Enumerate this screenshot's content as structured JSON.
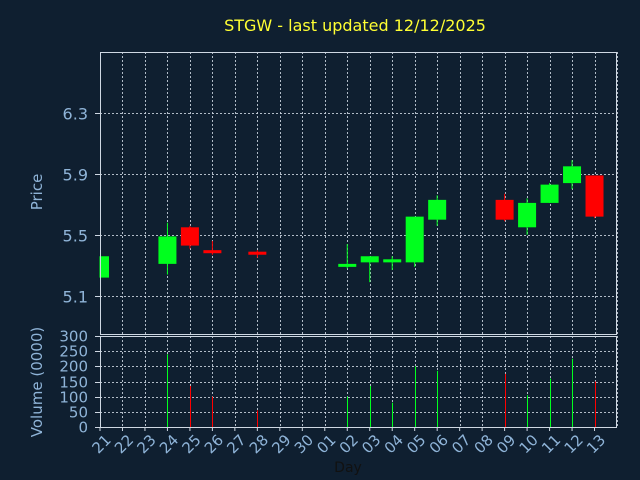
{
  "colors": {
    "background": "#0f1f30",
    "up": "#00ff1e",
    "down": "#ff0000",
    "grid": "#cfd8e3",
    "frame": "#cfd8e3",
    "text": "#8fb4d8",
    "title": "#ffff33"
  },
  "chart_data": [
    {
      "type": "candlestick",
      "title": "STGW - last updated 12/12/2025",
      "ylabel": "Price",
      "ylim": [
        4.85,
        6.7
      ],
      "yticks": [
        "5.1",
        "5.5",
        "5.9",
        "6.3"
      ],
      "grid": true,
      "x_range": [
        21,
        44
      ],
      "candles": [
        {
          "x": 21,
          "open": 5.22,
          "high": 5.36,
          "low": 5.22,
          "close": 5.36
        },
        {
          "x": 24,
          "open": 5.31,
          "high": 5.58,
          "low": 5.24,
          "close": 5.49
        },
        {
          "x": 25,
          "open": 5.55,
          "high": 5.56,
          "low": 5.41,
          "close": 5.43
        },
        {
          "x": 26,
          "open": 5.4,
          "high": 5.46,
          "low": 5.37,
          "close": 5.38
        },
        {
          "x": 28,
          "open": 5.39,
          "high": 5.4,
          "low": 5.35,
          "close": 5.37
        },
        {
          "x": 32,
          "open": 5.3,
          "high": 5.44,
          "low": 5.28,
          "close": 5.31
        },
        {
          "x": 33,
          "open": 5.32,
          "high": 5.36,
          "low": 5.19,
          "close": 5.36
        },
        {
          "x": 34,
          "open": 5.32,
          "high": 5.36,
          "low": 5.27,
          "close": 5.34
        },
        {
          "x": 35,
          "open": 5.32,
          "high": 5.62,
          "low": 5.29,
          "close": 5.62
        },
        {
          "x": 36,
          "open": 5.6,
          "high": 5.76,
          "low": 5.56,
          "close": 5.73
        },
        {
          "x": 39,
          "open": 5.73,
          "high": 5.77,
          "low": 5.59,
          "close": 5.6
        },
        {
          "x": 40,
          "open": 5.55,
          "high": 5.74,
          "low": 5.5,
          "close": 5.71
        },
        {
          "x": 41,
          "open": 5.71,
          "high": 5.84,
          "low": 5.71,
          "close": 5.83
        },
        {
          "x": 42,
          "open": 5.84,
          "high": 5.99,
          "low": 5.8,
          "close": 5.95
        },
        {
          "x": 43,
          "open": 5.89,
          "high": 5.89,
          "low": 5.61,
          "close": 5.62
        }
      ]
    },
    {
      "type": "bar",
      "ylabel": "Volume (0000)",
      "xlabel": "Day",
      "ylim": [
        0,
        300
      ],
      "yticks": [
        "0",
        "50",
        "100",
        "150",
        "200",
        "250",
        "300"
      ],
      "grid": true,
      "x_range": [
        21,
        44
      ],
      "x_tick_labels": [
        "21",
        "22",
        "23",
        "24",
        "25",
        "26",
        "27",
        "28",
        "29",
        "30",
        "01",
        "02",
        "03",
        "04",
        "05",
        "06",
        "07",
        "08",
        "09",
        "10",
        "11",
        "12",
        "13"
      ],
      "bars": [
        {
          "x": 21,
          "value": 0,
          "direction": "up"
        },
        {
          "x": 24,
          "value": 240,
          "direction": "up"
        },
        {
          "x": 25,
          "value": 135,
          "direction": "down"
        },
        {
          "x": 26,
          "value": 100,
          "direction": "down"
        },
        {
          "x": 28,
          "value": 55,
          "direction": "down"
        },
        {
          "x": 32,
          "value": 100,
          "direction": "up"
        },
        {
          "x": 33,
          "value": 135,
          "direction": "up"
        },
        {
          "x": 34,
          "value": 80,
          "direction": "up"
        },
        {
          "x": 35,
          "value": 200,
          "direction": "up"
        },
        {
          "x": 36,
          "value": 185,
          "direction": "up"
        },
        {
          "x": 39,
          "value": 175,
          "direction": "down"
        },
        {
          "x": 40,
          "value": 105,
          "direction": "up"
        },
        {
          "x": 41,
          "value": 160,
          "direction": "up"
        },
        {
          "x": 42,
          "value": 225,
          "direction": "up"
        },
        {
          "x": 43,
          "value": 150,
          "direction": "down"
        }
      ]
    }
  ]
}
